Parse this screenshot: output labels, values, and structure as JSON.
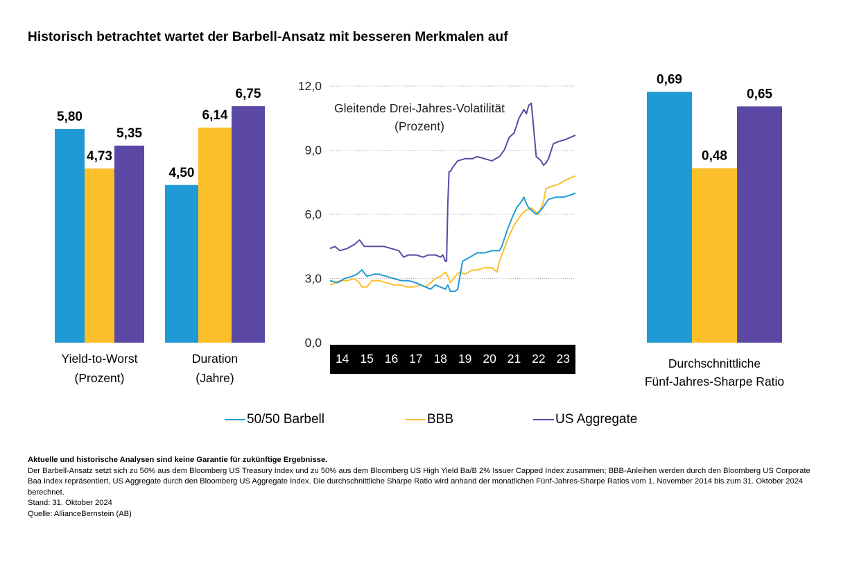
{
  "title": "Historisch betrachtet wartet der Barbell-Ansatz mit besseren Merkmalen auf",
  "colors": {
    "barbell": "#1f9ad6",
    "bbb": "#fbbf2a",
    "aggregate": "#5a48a4",
    "axis_bar": "#000000"
  },
  "legend": [
    {
      "key": "barbell",
      "label": "50/50 Barbell"
    },
    {
      "key": "bbb",
      "label": "BBB"
    },
    {
      "key": "aggregate",
      "label": "US Aggregate"
    }
  ],
  "chart_data": [
    {
      "type": "bar",
      "title": "Yield-to-Worst (Prozent)",
      "label_lines": [
        "Yield-to-Worst",
        "(Prozent)"
      ],
      "series": [
        {
          "name": "50/50 Barbell",
          "key": "barbell",
          "value": 5.8,
          "label": "5,80"
        },
        {
          "name": "BBB",
          "key": "bbb",
          "value": 4.73,
          "label": "4,73"
        },
        {
          "name": "US Aggregate",
          "key": "aggregate",
          "value": 5.35,
          "label": "5,35"
        }
      ]
    },
    {
      "type": "bar",
      "title": "Duration (Jahre)",
      "label_lines": [
        "Duration",
        "(Jahre)"
      ],
      "series": [
        {
          "name": "50/50 Barbell",
          "key": "barbell",
          "value": 4.5,
          "label": "4,50"
        },
        {
          "name": "BBB",
          "key": "bbb",
          "value": 6.14,
          "label": "6,14"
        },
        {
          "name": "US Aggregate",
          "key": "aggregate",
          "value": 6.75,
          "label": "6,75"
        }
      ]
    },
    {
      "type": "line",
      "title": "Gleitende Drei-Jahres-Volatilität (Prozent)",
      "title_lines": [
        "Gleitende Drei-Jahres-Volatilität",
        "(Prozent)"
      ],
      "ylim": [
        0,
        12
      ],
      "yticks": [
        0,
        3,
        6,
        9,
        12
      ],
      "ytick_labels": [
        "0,0",
        "3,0",
        "6,0",
        "9,0",
        "12,0"
      ],
      "xlim": [
        2014,
        2024
      ],
      "xtick_labels": [
        "14",
        "15",
        "16",
        "17",
        "18",
        "19",
        "20",
        "21",
        "22",
        "23"
      ],
      "series": [
        {
          "name": "50/50 Barbell",
          "key": "barbell",
          "x": [
            2014.0,
            2014.3,
            2014.6,
            2014.9,
            2015.1,
            2015.3,
            2015.5,
            2015.8,
            2016.0,
            2016.3,
            2016.6,
            2016.9,
            2017.2,
            2017.5,
            2017.7,
            2017.9,
            2018.1,
            2018.3,
            2018.5,
            2018.7,
            2018.8,
            2018.9,
            2019.1,
            2019.2,
            2019.4,
            2019.7,
            2020.0,
            2020.3,
            2020.6,
            2020.9,
            2021.0,
            2021.2,
            2021.4,
            2021.6,
            2021.8,
            2021.9,
            2022.0,
            2022.1,
            2022.2,
            2022.4,
            2022.5,
            2022.6,
            2022.9,
            2023.2,
            2023.5,
            2023.8,
            2024.0
          ],
          "y": [
            2.9,
            2.8,
            3.0,
            3.1,
            3.2,
            3.4,
            3.1,
            3.2,
            3.2,
            3.1,
            3.0,
            2.9,
            2.9,
            2.8,
            2.7,
            2.6,
            2.5,
            2.7,
            2.6,
            2.5,
            2.7,
            2.4,
            2.4,
            2.5,
            3.8,
            4.0,
            4.2,
            4.2,
            4.3,
            4.3,
            4.5,
            5.2,
            5.8,
            6.3,
            6.6,
            6.8,
            6.5,
            6.3,
            6.2,
            6.0,
            6.1,
            6.2,
            6.7,
            6.8,
            6.8,
            6.9,
            7.0
          ]
        },
        {
          "name": "BBB",
          "key": "bbb",
          "x": [
            2014.0,
            2014.2,
            2014.4,
            2014.7,
            2015.0,
            2015.2,
            2015.3,
            2015.5,
            2015.7,
            2016.0,
            2016.3,
            2016.6,
            2016.9,
            2017.1,
            2017.4,
            2017.7,
            2017.9,
            2018.1,
            2018.3,
            2018.5,
            2018.7,
            2018.8,
            2018.9,
            2019.1,
            2019.3,
            2019.5,
            2019.8,
            2020.0,
            2020.3,
            2020.6,
            2020.8,
            2020.9,
            2021.1,
            2021.3,
            2021.5,
            2021.8,
            2022.0,
            2022.2,
            2022.4,
            2022.5,
            2022.7,
            2022.8,
            2023.0,
            2023.3,
            2023.6,
            2023.8,
            2024.0
          ],
          "y": [
            2.7,
            2.8,
            2.9,
            2.9,
            3.0,
            2.8,
            2.6,
            2.6,
            2.9,
            2.9,
            2.8,
            2.7,
            2.7,
            2.6,
            2.6,
            2.7,
            2.6,
            2.8,
            3.0,
            3.1,
            3.3,
            3.1,
            2.8,
            3.1,
            3.3,
            3.2,
            3.4,
            3.4,
            3.5,
            3.5,
            3.3,
            3.8,
            4.4,
            5.0,
            5.5,
            6.0,
            6.2,
            6.3,
            6.1,
            6.0,
            6.6,
            7.2,
            7.3,
            7.4,
            7.6,
            7.7,
            7.8
          ]
        },
        {
          "name": "US Aggregate",
          "key": "aggregate",
          "x": [
            2014.0,
            2014.2,
            2014.4,
            2014.7,
            2015.0,
            2015.2,
            2015.4,
            2015.6,
            2015.9,
            2016.2,
            2016.5,
            2016.8,
            2017.0,
            2017.2,
            2017.5,
            2017.8,
            2018.0,
            2018.3,
            2018.5,
            2018.6,
            2018.7,
            2018.75,
            2018.8,
            2018.85,
            2018.9,
            2019.0,
            2019.2,
            2019.5,
            2019.8,
            2020.0,
            2020.3,
            2020.6,
            2020.9,
            2021.1,
            2021.3,
            2021.5,
            2021.7,
            2021.9,
            2022.0,
            2022.1,
            2022.2,
            2022.3,
            2022.4,
            2022.5,
            2022.6,
            2022.7,
            2022.8,
            2022.9,
            2023.1,
            2023.3,
            2023.6,
            2024.0
          ],
          "y": [
            4.4,
            4.5,
            4.3,
            4.4,
            4.6,
            4.8,
            4.5,
            4.5,
            4.5,
            4.5,
            4.4,
            4.3,
            4.0,
            4.1,
            4.1,
            4.0,
            4.1,
            4.1,
            4.0,
            4.1,
            3.8,
            3.8,
            6.5,
            8.0,
            8.0,
            8.2,
            8.5,
            8.6,
            8.6,
            8.7,
            8.6,
            8.5,
            8.7,
            9.0,
            9.6,
            9.8,
            10.5,
            10.9,
            10.7,
            11.1,
            11.2,
            10.0,
            8.7,
            8.6,
            8.5,
            8.3,
            8.4,
            8.6,
            9.3,
            9.4,
            9.5,
            9.7
          ]
        }
      ]
    },
    {
      "type": "bar",
      "title": "Durchschnittliche Fünf-Jahres-Sharpe Ratio",
      "label_lines": [
        "Durchschnittliche",
        "Fünf-Jahres-Sharpe Ratio"
      ],
      "series": [
        {
          "name": "50/50 Barbell",
          "key": "barbell",
          "value": 0.69,
          "label": "0,69"
        },
        {
          "name": "BBB",
          "key": "bbb",
          "value": 0.48,
          "label": "0,48"
        },
        {
          "name": "US Aggregate",
          "key": "aggregate",
          "value": 0.65,
          "label": "0,65"
        }
      ]
    }
  ],
  "notes": {
    "disclaimer": "Aktuelle und historische Analysen sind keine Garantie für zukünftige Ergebnisse.",
    "description": "Der Barbell-Ansatz setzt sich zu 50% aus dem Bloomberg US Treasury Index und zu 50% aus dem Bloomberg US High Yield Ba/B 2% Issuer Capped Index zusammen; BBB-Anleihen werden durch den Bloomberg US Corporate Baa Index repräsentiert, US Aggregate durch den Bloomberg US Aggregate Index. Die durchschnittliche Sharpe Ratio wird anhand der monatlichen Fünf-Jahres-Sharpe Ratios vom 1. November 2014 bis zum 31. Oktober 2024 berechnet.",
    "date": "Stand: 31. Oktober 2024",
    "source": "Quelle: AllianceBernstein (AB)"
  }
}
